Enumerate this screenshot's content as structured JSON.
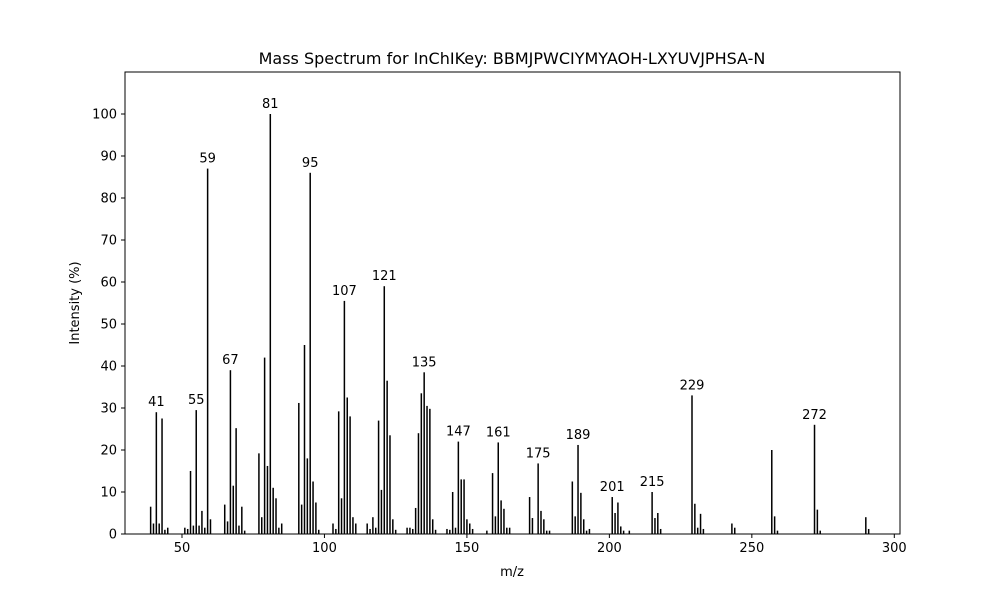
{
  "chart_data": {
    "type": "bar",
    "title": "Mass Spectrum for InChIKey: BBMJPWCIYMYAOH-LXYUVJPHSA-N",
    "xlabel": "m/z",
    "ylabel": "Intensity (%)",
    "xlim": [
      30,
      302
    ],
    "ylim": [
      0,
      110
    ],
    "xticks": [
      50,
      100,
      150,
      200,
      250,
      300
    ],
    "yticks": [
      0,
      10,
      20,
      30,
      40,
      50,
      60,
      70,
      80,
      90,
      100
    ],
    "grid": false,
    "bar_color": "#000000",
    "peaks": [
      [
        39,
        6.5
      ],
      [
        40,
        2.5
      ],
      [
        41,
        29
      ],
      [
        42,
        2.5
      ],
      [
        43,
        27.5
      ],
      [
        44,
        1
      ],
      [
        45,
        1.5
      ],
      [
        51,
        1.5
      ],
      [
        52,
        1.2
      ],
      [
        53,
        15
      ],
      [
        54,
        2
      ],
      [
        55,
        29.5
      ],
      [
        56,
        2
      ],
      [
        57,
        5.5
      ],
      [
        58,
        1.5
      ],
      [
        59,
        87
      ],
      [
        60,
        3.5
      ],
      [
        65,
        7
      ],
      [
        66,
        3
      ],
      [
        67,
        39
      ],
      [
        68,
        11.5
      ],
      [
        69,
        25.2
      ],
      [
        70,
        2
      ],
      [
        71,
        6.5
      ],
      [
        72,
        0.8
      ],
      [
        77,
        19.2
      ],
      [
        78,
        4
      ],
      [
        79,
        42
      ],
      [
        80,
        16.2
      ],
      [
        81,
        100
      ],
      [
        82,
        11
      ],
      [
        83,
        8.5
      ],
      [
        84,
        1.5
      ],
      [
        85,
        2.5
      ],
      [
        91,
        31.2
      ],
      [
        92,
        7
      ],
      [
        93,
        45
      ],
      [
        94,
        18
      ],
      [
        95,
        86
      ],
      [
        96,
        12.5
      ],
      [
        97,
        7.5
      ],
      [
        98,
        1
      ],
      [
        103,
        2.5
      ],
      [
        104,
        1.2
      ],
      [
        105,
        29.2
      ],
      [
        106,
        8.5
      ],
      [
        107,
        55.5
      ],
      [
        108,
        32.5
      ],
      [
        109,
        28
      ],
      [
        110,
        4
      ],
      [
        111,
        2.5
      ],
      [
        115,
        2.5
      ],
      [
        116,
        1.2
      ],
      [
        117,
        4
      ],
      [
        118,
        1.5
      ],
      [
        119,
        27
      ],
      [
        120,
        10.5
      ],
      [
        121,
        59
      ],
      [
        122,
        36.5
      ],
      [
        123,
        23.5
      ],
      [
        124,
        3.5
      ],
      [
        125,
        1
      ],
      [
        129,
        1.5
      ],
      [
        130,
        1.5
      ],
      [
        131,
        1.2
      ],
      [
        132,
        6.2
      ],
      [
        133,
        24
      ],
      [
        134,
        33.5
      ],
      [
        135,
        38.5
      ],
      [
        136,
        30.5
      ],
      [
        137,
        29.8
      ],
      [
        138,
        3.5
      ],
      [
        139,
        1
      ],
      [
        143,
        1.2
      ],
      [
        144,
        1
      ],
      [
        145,
        10
      ],
      [
        146,
        1.5
      ],
      [
        147,
        22
      ],
      [
        148,
        13
      ],
      [
        149,
        13
      ],
      [
        150,
        3.5
      ],
      [
        151,
        2.5
      ],
      [
        152,
        1.2
      ],
      [
        157,
        0.8
      ],
      [
        159,
        14.5
      ],
      [
        160,
        4.2
      ],
      [
        161,
        21.8
      ],
      [
        162,
        8
      ],
      [
        163,
        6
      ],
      [
        164,
        1.5
      ],
      [
        165,
        1.5
      ],
      [
        172,
        8.8
      ],
      [
        173,
        3.8
      ],
      [
        175,
        16.8
      ],
      [
        176,
        5.5
      ],
      [
        177,
        3.5
      ],
      [
        178,
        0.8
      ],
      [
        179,
        0.8
      ],
      [
        187,
        12.5
      ],
      [
        188,
        4.2
      ],
      [
        189,
        21.2
      ],
      [
        190,
        9.8
      ],
      [
        191,
        3.5
      ],
      [
        192,
        0.8
      ],
      [
        193,
        1.2
      ],
      [
        201,
        8.8
      ],
      [
        202,
        5
      ],
      [
        203,
        7.5
      ],
      [
        204,
        1.8
      ],
      [
        205,
        0.8
      ],
      [
        207,
        0.8
      ],
      [
        215,
        10
      ],
      [
        216,
        3.8
      ],
      [
        217,
        5
      ],
      [
        218,
        1.2
      ],
      [
        229,
        33
      ],
      [
        230,
        7.2
      ],
      [
        231,
        1.5
      ],
      [
        232,
        4.8
      ],
      [
        233,
        1.2
      ],
      [
        243,
        2.5
      ],
      [
        244,
        1.5
      ],
      [
        257,
        20
      ],
      [
        258,
        4.2
      ],
      [
        259,
        0.8
      ],
      [
        272,
        26
      ],
      [
        273,
        5.8
      ],
      [
        274,
        0.8
      ],
      [
        290,
        4
      ],
      [
        291,
        1.2
      ]
    ],
    "annotations": [
      {
        "label": "41",
        "mz": 41,
        "value": 29
      },
      {
        "label": "55",
        "mz": 55,
        "value": 29.5
      },
      {
        "label": "59",
        "mz": 59,
        "value": 87
      },
      {
        "label": "67",
        "mz": 67,
        "value": 39
      },
      {
        "label": "81",
        "mz": 81,
        "value": 100
      },
      {
        "label": "95",
        "mz": 95,
        "value": 86
      },
      {
        "label": "107",
        "mz": 107,
        "value": 55.5
      },
      {
        "label": "121",
        "mz": 121,
        "value": 59
      },
      {
        "label": "135",
        "mz": 135,
        "value": 38.5
      },
      {
        "label": "147",
        "mz": 147,
        "value": 22
      },
      {
        "label": "161",
        "mz": 161,
        "value": 21.8
      },
      {
        "label": "175",
        "mz": 175,
        "value": 16.8
      },
      {
        "label": "189",
        "mz": 189,
        "value": 21.2
      },
      {
        "label": "201",
        "mz": 201,
        "value": 8.8
      },
      {
        "label": "215",
        "mz": 215,
        "value": 10
      },
      {
        "label": "229",
        "mz": 229,
        "value": 33
      },
      {
        "label": "272",
        "mz": 272,
        "value": 26
      }
    ]
  }
}
